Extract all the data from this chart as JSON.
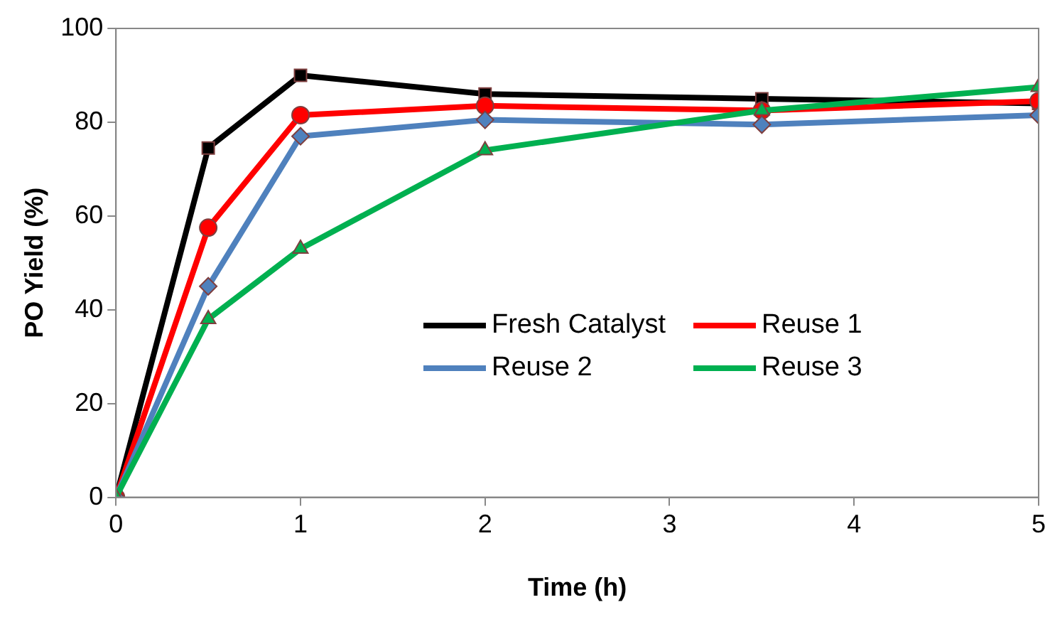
{
  "chart_data": {
    "type": "line",
    "xlabel": "Time (h)",
    "ylabel": "PO Yield (%)",
    "x": [
      0,
      0.5,
      1,
      2,
      3.5,
      5
    ],
    "xlim": [
      0,
      5
    ],
    "xticks": [
      0,
      1,
      2,
      3,
      4,
      5
    ],
    "ylim": [
      0,
      100
    ],
    "yticks": [
      0,
      20,
      40,
      60,
      80,
      100
    ],
    "grid": false,
    "legend": "right",
    "line_style": "solid",
    "series": [
      {
        "name": "Fresh Catalyst",
        "color": "#000000",
        "marker": "square",
        "values": [
          0,
          74.5,
          90,
          86,
          85,
          84
        ]
      },
      {
        "name": "Reuse 1",
        "color": "#ff0000",
        "marker": "circle",
        "values": [
          0,
          57.5,
          81.5,
          83.5,
          82.5,
          84.5
        ]
      },
      {
        "name": "Reuse 2",
        "color": "#4f81bd",
        "marker": "diamond",
        "values": [
          0,
          45,
          77,
          80.5,
          79.5,
          81.5
        ]
      },
      {
        "name": "Reuse 3",
        "color": "#00b050",
        "marker": "triangle",
        "values": [
          0,
          38,
          53,
          74,
          82.5,
          87.5
        ]
      }
    ]
  }
}
